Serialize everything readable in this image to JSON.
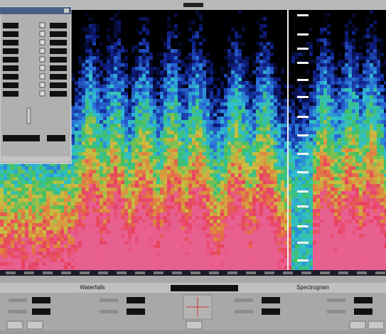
{
  "panels": {
    "left_title": "Waterfalls",
    "right_title": "Spectrogram"
  }
}
